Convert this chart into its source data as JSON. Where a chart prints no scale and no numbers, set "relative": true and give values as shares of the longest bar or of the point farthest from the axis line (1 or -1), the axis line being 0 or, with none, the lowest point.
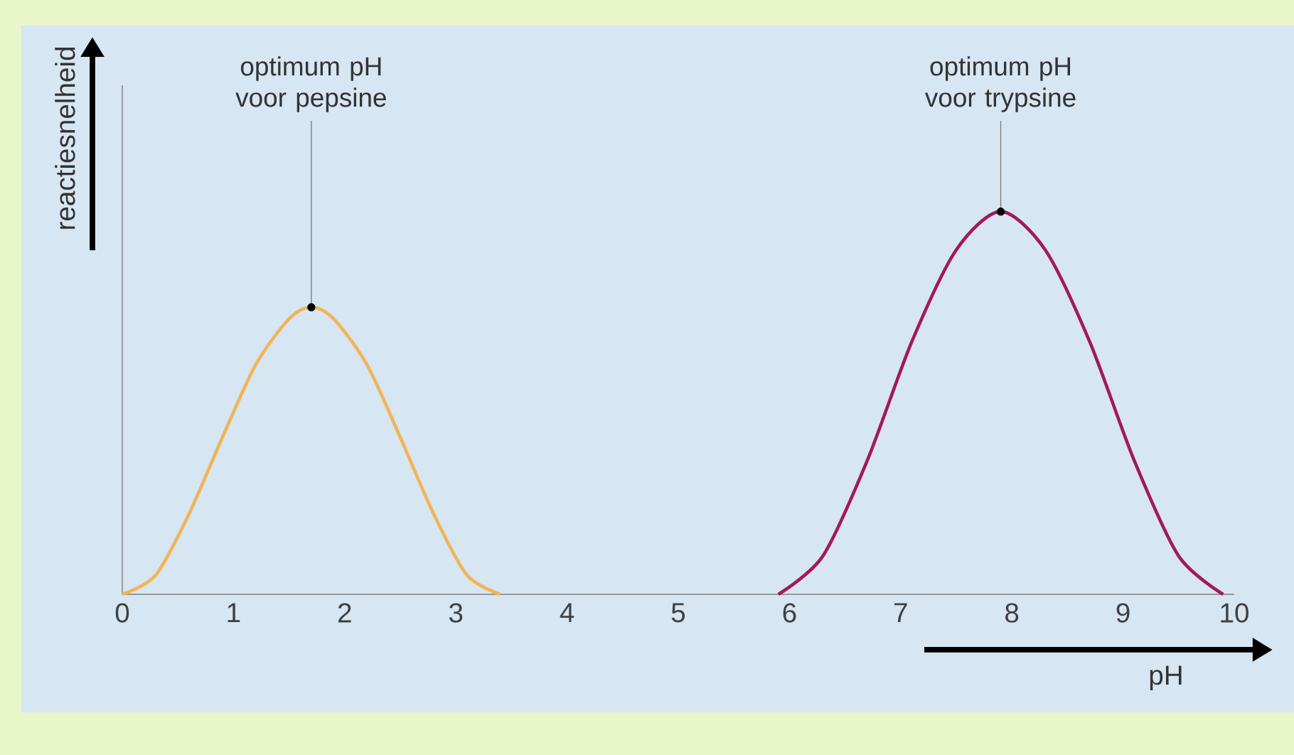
{
  "chart_data": {
    "type": "line",
    "relative": true,
    "xlabel": "pH",
    "ylabel": "reactiesnelheid",
    "xlim": [
      0,
      10
    ],
    "xticks": [
      0,
      1,
      2,
      3,
      4,
      5,
      6,
      7,
      8,
      9,
      10
    ],
    "series": [
      {
        "color": "#f2b455",
        "x": [
          0,
          0.3,
          0.6,
          0.9,
          1.2,
          1.5,
          1.7,
          1.9,
          2.2,
          2.5,
          2.8,
          3.1,
          3.4
        ],
        "values": [
          0,
          0.05,
          0.21,
          0.41,
          0.6,
          0.72,
          0.75,
          0.72,
          0.6,
          0.41,
          0.21,
          0.05,
          0
        ]
      },
      {
        "color": "#a3195b",
        "x": [
          5.9,
          6.3,
          6.7,
          7.1,
          7.5,
          7.9,
          8.3,
          8.7,
          9.1,
          9.5,
          9.9
        ],
        "values": [
          0,
          0.1,
          0.35,
          0.66,
          0.9,
          1,
          0.9,
          0.66,
          0.35,
          0.1,
          0
        ]
      }
    ],
    "annotations": [
      {
        "text": "optimum pH voor pepsine",
        "x": 1.7,
        "y": 0.75
      },
      {
        "text": "optimum pH voor trypsine",
        "x": 7.9,
        "y": 1
      }
    ]
  }
}
